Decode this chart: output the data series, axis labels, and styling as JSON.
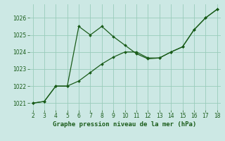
{
  "xlabel": "Graphe pression niveau de la mer (hPa)",
  "background_color": "#cce8e4",
  "grid_color": "#99ccbb",
  "line_color": "#1a5c1a",
  "marker_color": "#1a5c1a",
  "series1_x": [
    2,
    3,
    4,
    5,
    6,
    7,
    8,
    9,
    10,
    11,
    12,
    13,
    14,
    15,
    16,
    17,
    18
  ],
  "series1_y": [
    1021.0,
    1021.1,
    1022.0,
    1022.0,
    1025.5,
    1025.0,
    1025.5,
    1024.9,
    1024.4,
    1023.9,
    1023.6,
    1023.65,
    1024.0,
    1024.3,
    1025.3,
    1026.0,
    1026.5
  ],
  "series2_x": [
    2,
    3,
    4,
    5,
    6,
    7,
    8,
    9,
    10,
    11,
    12,
    13,
    14,
    15,
    16,
    17,
    18
  ],
  "series2_y": [
    1021.0,
    1021.1,
    1022.0,
    1022.0,
    1022.3,
    1022.8,
    1023.3,
    1023.7,
    1024.0,
    1024.0,
    1023.65,
    1023.65,
    1024.0,
    1024.3,
    1025.3,
    1026.0,
    1026.5
  ],
  "ylim": [
    1020.6,
    1026.8
  ],
  "xlim": [
    1.7,
    18.3
  ],
  "yticks": [
    1021,
    1022,
    1023,
    1024,
    1025,
    1026
  ],
  "xticks": [
    2,
    3,
    4,
    5,
    6,
    7,
    8,
    9,
    10,
    11,
    12,
    13,
    14,
    15,
    16,
    17,
    18
  ],
  "tick_fontsize": 5.5,
  "xlabel_fontsize": 6.5
}
